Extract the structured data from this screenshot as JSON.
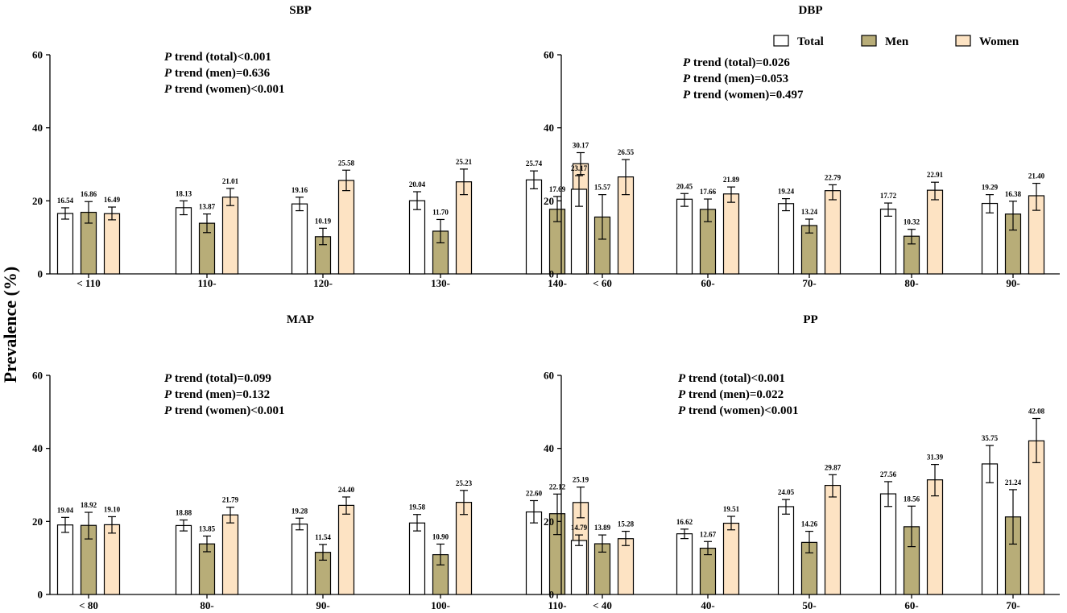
{
  "colors": {
    "Total": "#ffffff",
    "Men": "#b8ad78",
    "Women": "#fde3c3",
    "stroke": "#000000"
  },
  "legend": [
    {
      "name": "Total",
      "label": "Total"
    },
    {
      "name": "Men",
      "label": "Men"
    },
    {
      "name": "Women",
      "label": "Women"
    }
  ],
  "ylabel": "Prevalence (%)",
  "chart_data": [
    {
      "type": "bar",
      "title": "SBP",
      "ylim": [
        0,
        60
      ],
      "yticks": [
        0,
        20,
        40,
        60
      ],
      "categories": [
        "< 110",
        "110-",
        "120-",
        "130-",
        "140-"
      ],
      "series": [
        {
          "name": "Total",
          "values": [
            16.54,
            18.13,
            19.16,
            20.04,
            25.74
          ],
          "labels": [
            "16.54",
            "18.13",
            "19.16",
            "20.04",
            "25.74"
          ],
          "err_low": [
            15.0,
            16.2,
            17.3,
            17.6,
            23.3
          ],
          "err_high": [
            18.1,
            20.0,
            21.0,
            22.5,
            28.2
          ]
        },
        {
          "name": "Men",
          "values": [
            16.86,
            13.87,
            10.19,
            11.7,
            17.69
          ],
          "labels": [
            "16.86",
            "13.87",
            "10.19",
            "11.70",
            "17.69"
          ],
          "err_low": [
            13.9,
            11.3,
            8.0,
            8.5,
            14.3
          ],
          "err_high": [
            19.8,
            16.4,
            12.5,
            14.9,
            21.2
          ]
        },
        {
          "name": "Women",
          "values": [
            16.49,
            21.01,
            25.58,
            25.21,
            30.17
          ],
          "labels": [
            "16.49",
            "21.01",
            "25.58",
            "25.21",
            "30.17"
          ],
          "err_low": [
            14.8,
            18.7,
            22.8,
            21.7,
            27.2
          ],
          "err_high": [
            18.3,
            23.4,
            28.4,
            28.7,
            33.2
          ]
        }
      ],
      "p_trend": [
        "trend (total)<0.001",
        "trend (men)=0.636",
        "trend (women)<0.001"
      ]
    },
    {
      "type": "bar",
      "title": "DBP",
      "ylim": [
        0,
        60
      ],
      "yticks": [
        0,
        20,
        40,
        60
      ],
      "categories": [
        "< 60",
        "60-",
        "70-",
        "80-",
        "90-"
      ],
      "series": [
        {
          "name": "Total",
          "values": [
            23.17,
            20.45,
            19.24,
            17.72,
            19.29
          ],
          "labels": [
            "23.17",
            "20.45",
            "19.24",
            "17.72",
            "19.29"
          ],
          "err_low": [
            18.5,
            18.5,
            17.3,
            15.8,
            16.7
          ],
          "err_high": [
            26.9,
            22.0,
            20.6,
            19.4,
            21.7
          ]
        },
        {
          "name": "Men",
          "values": [
            15.57,
            17.66,
            13.24,
            10.32,
            16.38
          ],
          "labels": [
            "15.57",
            "17.66",
            "13.24",
            "10.32",
            "16.38"
          ],
          "err_low": [
            9.5,
            14.3,
            11.2,
            8.2,
            12.0
          ],
          "err_high": [
            21.7,
            20.5,
            15.0,
            12.2,
            19.9
          ]
        },
        {
          "name": "Women",
          "values": [
            26.55,
            21.89,
            22.79,
            22.91,
            21.4
          ],
          "labels": [
            "26.55",
            "21.89",
            "22.79",
            "22.91",
            "21.40"
          ],
          "err_low": [
            21.7,
            19.6,
            20.3,
            20.3,
            17.4
          ],
          "err_high": [
            31.3,
            23.8,
            24.4,
            25.1,
            24.8
          ]
        }
      ],
      "p_trend": [
        "trend (total)=0.026",
        "trend (men)=0.053",
        "trend (women)=0.497"
      ]
    },
    {
      "type": "bar",
      "title": "MAP",
      "ylim": [
        0,
        60
      ],
      "yticks": [
        0,
        20,
        40,
        60
      ],
      "categories": [
        "< 80",
        "80-",
        "90-",
        "100-",
        "110-"
      ],
      "series": [
        {
          "name": "Total",
          "values": [
            19.04,
            18.88,
            19.28,
            19.58,
            22.6
          ],
          "labels": [
            "19.04",
            "18.88",
            "19.28",
            "19.58",
            "22.60"
          ],
          "err_low": [
            17.0,
            17.4,
            17.7,
            17.4,
            19.6
          ],
          "err_high": [
            21.1,
            20.4,
            20.9,
            21.9,
            25.7
          ]
        },
        {
          "name": "Men",
          "values": [
            18.92,
            13.85,
            11.54,
            10.9,
            22.12
          ],
          "labels": [
            "18.92",
            "13.85",
            "11.54",
            "10.90",
            "22.12"
          ],
          "err_low": [
            15.2,
            11.7,
            9.4,
            8.1,
            16.4
          ],
          "err_high": [
            22.5,
            16.0,
            13.7,
            13.8,
            27.5
          ]
        },
        {
          "name": "Women",
          "values": [
            19.1,
            21.79,
            24.4,
            25.23,
            25.19
          ],
          "labels": [
            "19.10",
            "21.79",
            "24.40",
            "25.23",
            "25.19"
          ],
          "err_low": [
            16.8,
            19.6,
            22.0,
            21.9,
            21.0
          ],
          "err_high": [
            21.3,
            23.9,
            26.7,
            28.5,
            29.4
          ]
        }
      ],
      "p_trend": [
        "trend (total)=0.099",
        "trend (men)=0.132",
        "trend (women)<0.001"
      ]
    },
    {
      "type": "bar",
      "title": "PP",
      "ylim": [
        0,
        60
      ],
      "yticks": [
        0,
        20,
        40,
        60
      ],
      "categories": [
        "< 40",
        "40-",
        "50-",
        "60-",
        "70-"
      ],
      "series": [
        {
          "name": "Total",
          "values": [
            14.79,
            16.62,
            24.05,
            27.56,
            35.75
          ],
          "labels": [
            "14.79",
            "16.62",
            "24.05",
            "27.56",
            "35.75"
          ],
          "err_low": [
            13.4,
            15.3,
            22.0,
            24.1,
            30.6
          ],
          "err_high": [
            16.3,
            17.9,
            26.0,
            30.9,
            40.8
          ]
        },
        {
          "name": "Men",
          "values": [
            13.89,
            12.67,
            14.26,
            18.56,
            21.24
          ],
          "labels": [
            "13.89",
            "12.67",
            "14.26",
            "18.56",
            "21.24"
          ],
          "err_low": [
            11.6,
            10.9,
            11.4,
            13.1,
            13.8
          ],
          "err_high": [
            16.3,
            14.5,
            17.3,
            24.2,
            28.7
          ]
        },
        {
          "name": "Women",
          "values": [
            15.28,
            19.51,
            29.87,
            31.39,
            42.08
          ],
          "labels": [
            "15.28",
            "19.51",
            "29.87",
            "31.39",
            "42.08"
          ],
          "err_low": [
            13.4,
            17.7,
            26.7,
            27.0,
            36.1
          ],
          "err_high": [
            17.3,
            21.4,
            32.8,
            35.6,
            48.2
          ]
        }
      ],
      "p_trend": [
        "trend (total)<0.001",
        "trend (men)=0.022",
        "trend (women)<0.001"
      ]
    }
  ],
  "p_italic": "P"
}
